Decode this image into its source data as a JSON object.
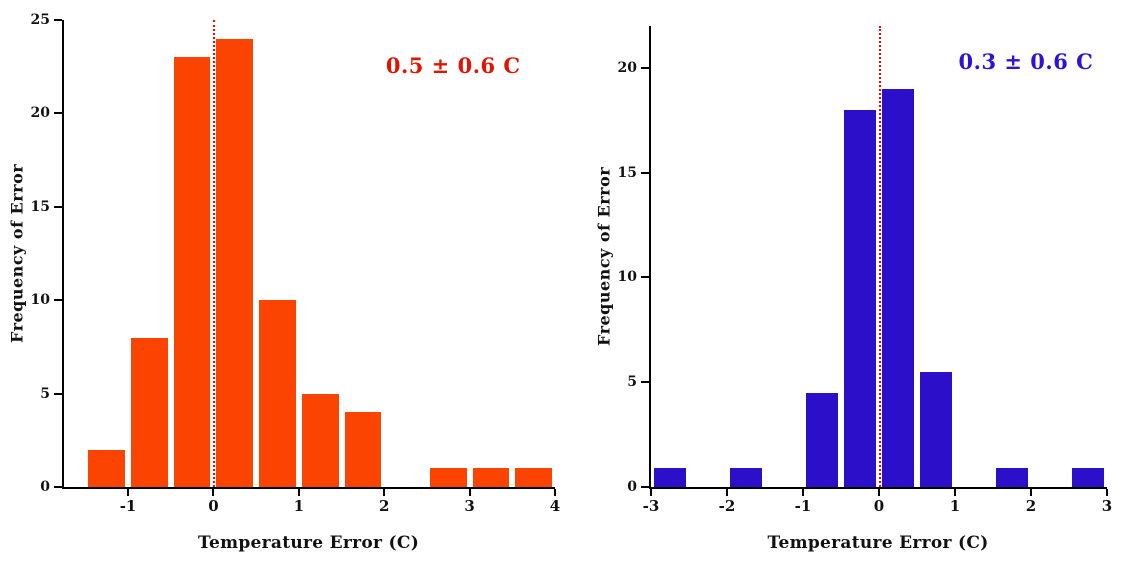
{
  "chart_data": [
    {
      "type": "bar",
      "title": "",
      "ylabel": "Frequency of Error",
      "xlabel": "Temperature Error (C)",
      "annotation": "0.5 ± 0.6 C",
      "annotation_color": "#e01500",
      "bar_color": "#fb4402",
      "xlim": [
        -1.75,
        4.0
      ],
      "ylim": [
        0,
        25
      ],
      "yticks": [
        0,
        5,
        10,
        15,
        20,
        25
      ],
      "xticks": [
        -1,
        0,
        1,
        2,
        3,
        4
      ],
      "bins_start": -1.5,
      "bin_width": 0.5,
      "values": [
        2,
        8,
        23,
        24,
        10,
        5,
        4,
        0,
        1,
        1,
        1
      ],
      "grid": false,
      "legend": "none",
      "zero_line": {
        "x": 0,
        "color": "#ff0000",
        "style": "dotted"
      }
    },
    {
      "type": "bar",
      "title": "",
      "ylabel": "Frequency of Error",
      "xlabel": "Temperature Error (C)",
      "annotation": "0.3 ± 0.6 C",
      "annotation_color": "#2a12d8",
      "bar_color": "#2b0fc9",
      "xlim": [
        -3.0,
        3.0
      ],
      "ylim": [
        0,
        22
      ],
      "yticks": [
        0,
        5,
        10,
        15,
        20
      ],
      "xticks": [
        -3,
        -2,
        -1,
        0,
        1,
        2,
        3
      ],
      "bins_start": -3.0,
      "bin_width": 0.5,
      "values": [
        0.9,
        0,
        0.9,
        0,
        4.5,
        18,
        19,
        5.5,
        0,
        0.9,
        0,
        0.9
      ],
      "grid": false,
      "legend": "none",
      "zero_line": {
        "x": 0,
        "color": "#ff0000",
        "style": "dotted"
      }
    }
  ]
}
